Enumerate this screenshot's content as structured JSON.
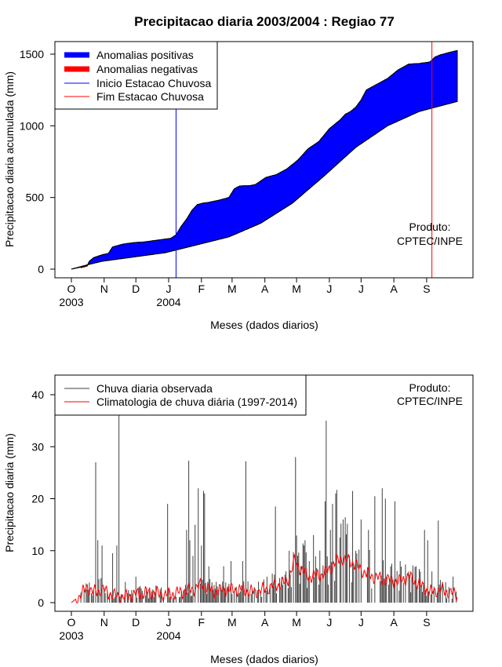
{
  "chart_data": [
    {
      "type": "area",
      "title": "Precipitacao diaria 2003/2004 : Regiao 77",
      "xlabel": "Meses (dados diarios)",
      "ylabel": "Precipitacao diaria acumulada (mm)",
      "ylim": [
        0,
        1550
      ],
      "yticks": [
        0,
        500,
        1000,
        1500
      ],
      "month_ticks": [
        "O",
        "N",
        "D",
        "J",
        "F",
        "M",
        "A",
        "M",
        "J",
        "J",
        "A",
        "S"
      ],
      "year_ticks": [
        {
          "label": "2003",
          "month_index": 0
        },
        {
          "label": "2004",
          "month_index": 3
        }
      ],
      "day_range": [
        1,
        366
      ],
      "observed_cumulative": {
        "day": [
          1,
          10,
          16,
          18,
          22,
          30,
          36,
          40,
          50,
          60,
          70,
          80,
          90,
          95,
          100,
          105,
          110,
          115,
          120,
          125,
          130,
          140,
          150,
          155,
          160,
          170,
          175,
          185,
          195,
          205,
          215,
          225,
          235,
          245,
          255,
          260,
          265,
          270,
          275,
          280,
          290,
          300,
          310,
          320,
          330,
          335,
          340,
          345,
          350,
          355,
          360,
          366
        ],
        "value": [
          0,
          15,
          26,
          55,
          80,
          100,
          110,
          155,
          175,
          185,
          190,
          200,
          210,
          215,
          240,
          300,
          350,
          410,
          450,
          460,
          465,
          480,
          500,
          560,
          580,
          583,
          590,
          640,
          660,
          700,
          760,
          840,
          890,
          980,
          1040,
          1080,
          1100,
          1130,
          1180,
          1250,
          1290,
          1330,
          1390,
          1430,
          1435,
          1440,
          1445,
          1480,
          1495,
          1505,
          1515,
          1525
        ]
      },
      "climatology_cumulative": {
        "day": [
          1,
          16,
          30,
          60,
          90,
          120,
          150,
          180,
          210,
          240,
          270,
          300,
          330,
          366
        ],
        "value": [
          0,
          30,
          55,
          85,
          115,
          170,
          225,
          320,
          460,
          650,
          850,
          1000,
          1100,
          1170
        ]
      },
      "rainy_season_start_day": 100,
      "rainy_season_end_day": 342,
      "legend": [
        {
          "label": "Anomalias positivas",
          "color": "#0000ff",
          "style": "thick"
        },
        {
          "label": "Anomalias negativas",
          "color": "#ff0000",
          "style": "thick"
        },
        {
          "label": "Inicio Estacao Chuvosa",
          "color": "#0000ff",
          "style": "thin"
        },
        {
          "label": "Fim Estacao Chuvosa",
          "color": "#ff0000",
          "style": "thin"
        }
      ],
      "annotation": [
        "Produto:",
        "CPTEC/INPE"
      ]
    },
    {
      "type": "bar",
      "xlabel": "Meses (dados diarios)",
      "ylabel": "Precipitacao diaria (mm)",
      "ylim": [
        0,
        43
      ],
      "yticks": [
        0,
        10,
        20,
        30,
        40
      ],
      "month_ticks": [
        "O",
        "N",
        "D",
        "J",
        "F",
        "M",
        "A",
        "M",
        "J",
        "J",
        "A",
        "S"
      ],
      "year_ticks": [
        {
          "label": "2003",
          "month_index": 0
        },
        {
          "label": "2004",
          "month_index": 3
        }
      ],
      "day_range": [
        1,
        366
      ],
      "observed_peaks": [
        {
          "day": 16,
          "value": 2.5
        },
        {
          "day": 24,
          "value": 27
        },
        {
          "day": 26,
          "value": 12
        },
        {
          "day": 30,
          "value": 11
        },
        {
          "day": 40,
          "value": 9.5
        },
        {
          "day": 44,
          "value": 11
        },
        {
          "day": 46,
          "value": 36
        },
        {
          "day": 52,
          "value": 4
        },
        {
          "day": 62,
          "value": 5
        },
        {
          "day": 80,
          "value": 2
        },
        {
          "day": 92,
          "value": 19
        },
        {
          "day": 110,
          "value": 14
        },
        {
          "day": 112,
          "value": 27.3
        },
        {
          "day": 113,
          "value": 12
        },
        {
          "day": 116,
          "value": 9
        },
        {
          "day": 118,
          "value": 15
        },
        {
          "day": 121,
          "value": 22
        },
        {
          "day": 124,
          "value": 11
        },
        {
          "day": 126,
          "value": 21.5
        },
        {
          "day": 127,
          "value": 21
        },
        {
          "day": 131,
          "value": 7
        },
        {
          "day": 138,
          "value": 4
        },
        {
          "day": 145,
          "value": 7
        },
        {
          "day": 152,
          "value": 8
        },
        {
          "day": 163,
          "value": 8
        },
        {
          "day": 166,
          "value": 27.2
        },
        {
          "day": 174,
          "value": 3
        },
        {
          "day": 186,
          "value": 5
        },
        {
          "day": 194,
          "value": 18.5
        },
        {
          "day": 200,
          "value": 5
        },
        {
          "day": 209,
          "value": 3
        },
        {
          "day": 213,
          "value": 28
        },
        {
          "day": 218,
          "value": 7
        },
        {
          "day": 222,
          "value": 12
        },
        {
          "day": 226,
          "value": 8
        },
        {
          "day": 230,
          "value": 13
        },
        {
          "day": 236,
          "value": 10
        },
        {
          "day": 241,
          "value": 19.5
        },
        {
          "day": 242,
          "value": 35
        },
        {
          "day": 246,
          "value": 14
        },
        {
          "day": 248,
          "value": 19
        },
        {
          "day": 251,
          "value": 21
        },
        {
          "day": 252,
          "value": 21.7
        },
        {
          "day": 258,
          "value": 16
        },
        {
          "day": 264,
          "value": 9
        },
        {
          "day": 267,
          "value": 21.5
        },
        {
          "day": 270,
          "value": 10
        },
        {
          "day": 275,
          "value": 16
        },
        {
          "day": 282,
          "value": 14
        },
        {
          "day": 288,
          "value": 20.5
        },
        {
          "day": 295,
          "value": 22
        },
        {
          "day": 298,
          "value": 20
        },
        {
          "day": 303,
          "value": 7
        },
        {
          "day": 307,
          "value": 19.5
        },
        {
          "day": 312,
          "value": 8
        },
        {
          "day": 320,
          "value": 6
        },
        {
          "day": 327,
          "value": 7
        },
        {
          "day": 335,
          "value": 14
        },
        {
          "day": 338,
          "value": 12
        },
        {
          "day": 342,
          "value": 6
        },
        {
          "day": 348,
          "value": 15.8
        },
        {
          "day": 352,
          "value": 4
        },
        {
          "day": 358,
          "value": 3
        },
        {
          "day": 362,
          "value": 5
        }
      ],
      "climatology": {
        "day": [
          1,
          10,
          16,
          22,
          30,
          40,
          50,
          60,
          75,
          90,
          105,
          115,
          125,
          135,
          145,
          160,
          175,
          190,
          205,
          212,
          218,
          225,
          240,
          255,
          265,
          280,
          295,
          310,
          320,
          330,
          340,
          350,
          366
        ],
        "value": [
          0,
          1.5,
          3,
          2,
          2.5,
          1.5,
          1,
          1.5,
          2,
          1.5,
          2,
          2.5,
          3.5,
          2,
          2.5,
          2.5,
          2,
          3,
          4,
          8,
          6.5,
          5,
          5.5,
          8.5,
          8,
          5.5,
          4.5,
          4,
          5,
          3.5,
          2,
          2.5,
          1.5
        ]
      },
      "legend": [
        {
          "label": "Chuva diaria observada",
          "color": "#404040"
        },
        {
          "label": "Climatologia de chuva diária (1997-2014)",
          "color": "#ff0000"
        }
      ],
      "annotation": [
        "Produto:",
        "CPTEC/INPE"
      ]
    }
  ]
}
